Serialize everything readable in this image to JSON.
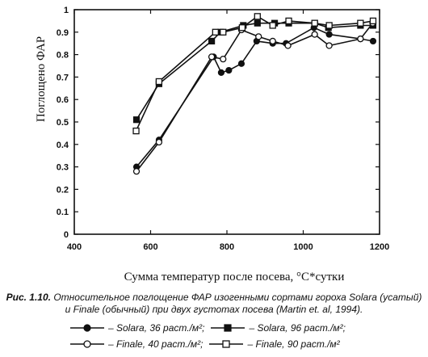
{
  "chart_data": {
    "type": "line",
    "title": "",
    "xlabel": "Сумма температур после посева, °С*сутки",
    "ylabel": "Поглощено ФАР",
    "xlim": [
      400,
      1200
    ],
    "ylim": [
      0,
      1
    ],
    "xticks": [
      "400",
      "600",
      "800",
      "1000",
      "1200"
    ],
    "yticks": [
      "0",
      "0.1",
      "0.2",
      "0.3",
      "0.4",
      "0.5",
      "0.6",
      "0.7",
      "0.8",
      "0.9",
      "1"
    ],
    "grid": false,
    "series": [
      {
        "name": "– Solara, 36 раст./м²;",
        "marker": "filled-circle",
        "x": [
          563,
          622,
          765,
          785,
          805,
          838,
          878,
          920,
          955,
          1028,
          1068,
          1150,
          1183
        ],
        "y": [
          0.3,
          0.42,
          0.79,
          0.72,
          0.73,
          0.76,
          0.86,
          0.85,
          0.85,
          0.92,
          0.89,
          0.87,
          0.86
        ]
      },
      {
        "name": "– Solara, 96 раст./м²;",
        "marker": "filled-square",
        "x": [
          563,
          622,
          760,
          783,
          843,
          880,
          925,
          962,
          1030,
          1066,
          1150,
          1183
        ],
        "y": [
          0.51,
          0.67,
          0.86,
          0.9,
          0.93,
          0.94,
          0.94,
          0.94,
          0.94,
          0.92,
          0.93,
          0.93
        ]
      },
      {
        "name": "– Finale, 40 раст./м²;",
        "marker": "open-circle",
        "x": [
          563,
          622,
          760,
          790,
          838,
          883,
          920,
          960,
          1030,
          1068,
          1150,
          1182
        ],
        "y": [
          0.28,
          0.41,
          0.79,
          0.78,
          0.91,
          0.88,
          0.86,
          0.84,
          0.89,
          0.84,
          0.87,
          0.94
        ]
      },
      {
        "name": "– Finale, 90 раст./м²",
        "marker": "open-square",
        "x": [
          562,
          622,
          770,
          790,
          840,
          880,
          920,
          962,
          1030,
          1068,
          1150,
          1183
        ],
        "y": [
          0.46,
          0.68,
          0.9,
          0.9,
          0.92,
          0.97,
          0.93,
          0.95,
          0.94,
          0.93,
          0.94,
          0.95
        ]
      }
    ]
  },
  "caption": {
    "figure_label": "Рис. 1.10.",
    "text": " Относительное поглощение ФАР изогенными сортами гороха Solara (усатый) и Finale (обычный) при двух густотах посева (Martin et. al, 1994)."
  }
}
